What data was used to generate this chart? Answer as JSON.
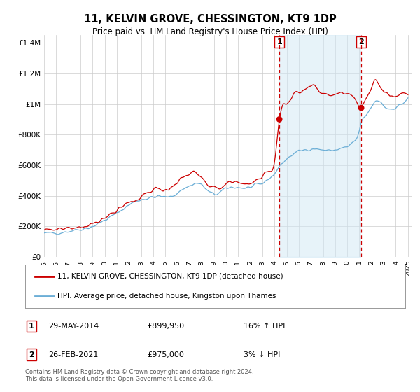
{
  "title": "11, KELVIN GROVE, CHESSINGTON, KT9 1DP",
  "subtitle": "Price paid vs. HM Land Registry's House Price Index (HPI)",
  "legend_line1": "11, KELVIN GROVE, CHESSINGTON, KT9 1DP (detached house)",
  "legend_line2": "HPI: Average price, detached house, Kingston upon Thames",
  "transaction1_date": "29-MAY-2014",
  "transaction1_price": "£899,950",
  "transaction1_hpi": "16% ↑ HPI",
  "transaction2_date": "26-FEB-2021",
  "transaction2_price": "£975,000",
  "transaction2_hpi": "3% ↓ HPI",
  "footer": "Contains HM Land Registry data © Crown copyright and database right 2024.\nThis data is licensed under the Open Government Licence v3.0.",
  "hpi_color": "#6baed6",
  "hpi_fill_color": "#d0e8f5",
  "price_color": "#cc0000",
  "vline_color": "#cc0000",
  "bg_color": "#ffffff",
  "grid_color": "#cccccc",
  "ylim": [
    0,
    1450000
  ],
  "yticks": [
    0,
    200000,
    400000,
    600000,
    800000,
    1000000,
    1200000,
    1400000
  ],
  "ytick_labels": [
    "£0",
    "£200K",
    "£400K",
    "£600K",
    "£800K",
    "£1M",
    "£1.2M",
    "£1.4M"
  ],
  "year_start": 1995,
  "year_end": 2025,
  "transaction1_year": 2014.4,
  "transaction2_year": 2021.15,
  "transaction1_value": 899950,
  "transaction2_value": 975000
}
